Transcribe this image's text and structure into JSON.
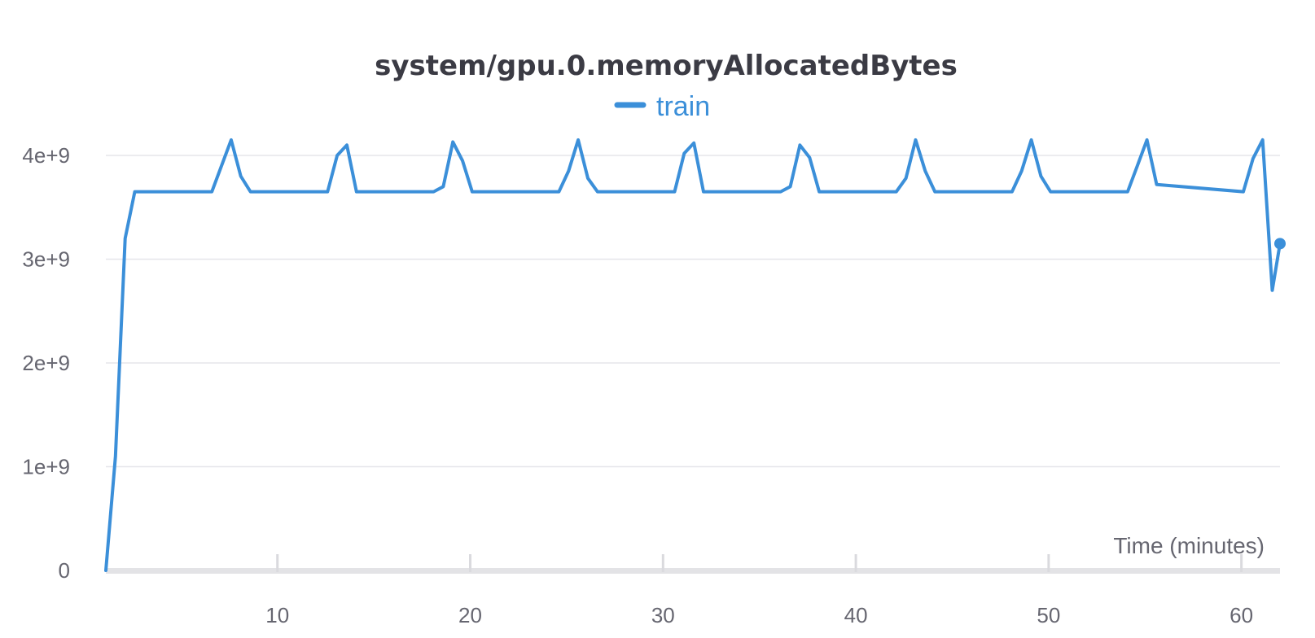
{
  "chart_data": {
    "type": "line",
    "title": "system/gpu.0.memoryAllocatedBytes",
    "xlabel": "Time (minutes)",
    "ylabel": "",
    "xlim": [
      1.1,
      62
    ],
    "ylim": [
      0,
      4000000000
    ],
    "grid": true,
    "legend_position": "top-center",
    "x_ticks": [
      10,
      20,
      30,
      40,
      50,
      60
    ],
    "x_tick_labels": [
      "10",
      "20",
      "30",
      "40",
      "50",
      "60"
    ],
    "y_ticks": [
      0,
      1000000000,
      2000000000,
      3000000000,
      4000000000
    ],
    "y_tick_labels": [
      "0",
      "1e+9",
      "2e+9",
      "3e+9",
      "4e+9"
    ],
    "series": [
      {
        "name": "train",
        "color": "#3b8fd9",
        "x": [
          1.1,
          1.6,
          2.1,
          2.6,
          6.6,
          7.6,
          8.1,
          8.6,
          12.6,
          13.1,
          13.6,
          14.1,
          18.1,
          18.6,
          19.1,
          19.6,
          20.1,
          24.6,
          25.1,
          25.6,
          26.1,
          26.6,
          30.6,
          31.1,
          31.6,
          32.1,
          36.1,
          36.6,
          37.1,
          37.6,
          38.1,
          42.1,
          42.6,
          43.1,
          43.6,
          44.1,
          48.1,
          48.6,
          49.1,
          49.6,
          50.1,
          54.1,
          54.6,
          55.1,
          55.6,
          60.1,
          60.6,
          61.1,
          61.6,
          62.0
        ],
        "y": [
          0,
          1100000000,
          3200000000,
          3650000000,
          3650000000,
          4150000000,
          3800000000,
          3650000000,
          3650000000,
          4000000000,
          4100000000,
          3650000000,
          3650000000,
          3700000000,
          4130000000,
          3950000000,
          3650000000,
          3650000000,
          3850000000,
          4150000000,
          3780000000,
          3650000000,
          3650000000,
          4020000000,
          4120000000,
          3650000000,
          3650000000,
          3700000000,
          4100000000,
          3980000000,
          3650000000,
          3650000000,
          3780000000,
          4150000000,
          3850000000,
          3650000000,
          3650000000,
          3850000000,
          4150000000,
          3800000000,
          3650000000,
          3650000000,
          3900000000,
          4150000000,
          3720000000,
          3650000000,
          3970000000,
          4150000000,
          2700000000,
          3150000000
        ]
      }
    ]
  }
}
